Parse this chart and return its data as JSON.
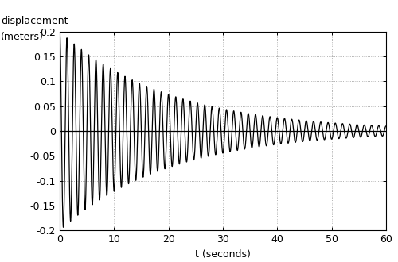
{
  "xlabel": "t (seconds)",
  "ylabel_line1": "displacement",
  "ylabel_line2": "(meters)",
  "xlim": [
    0,
    60
  ],
  "ylim": [
    -0.2,
    0.2
  ],
  "xticks": [
    0,
    10,
    20,
    30,
    40,
    50,
    60
  ],
  "yticks": [
    -0.2,
    -0.15,
    -0.1,
    -0.05,
    0.0,
    0.05,
    0.1,
    0.15,
    0.2
  ],
  "ytick_labels": [
    "-0.2",
    "-0.15",
    "-0.1",
    "-0.05",
    "0",
    "0.05",
    "0.1",
    "0.15",
    "0.2"
  ],
  "amplitude": 0.2,
  "decay": 0.05,
  "frequency": 0.75,
  "line_color": "#000000",
  "line_width": 0.9,
  "grid_color": "#999999",
  "background_color": "#ffffff",
  "figsize": [
    5.0,
    3.3
  ],
  "dpi": 100,
  "label_fontsize": 9,
  "tick_fontsize": 9
}
